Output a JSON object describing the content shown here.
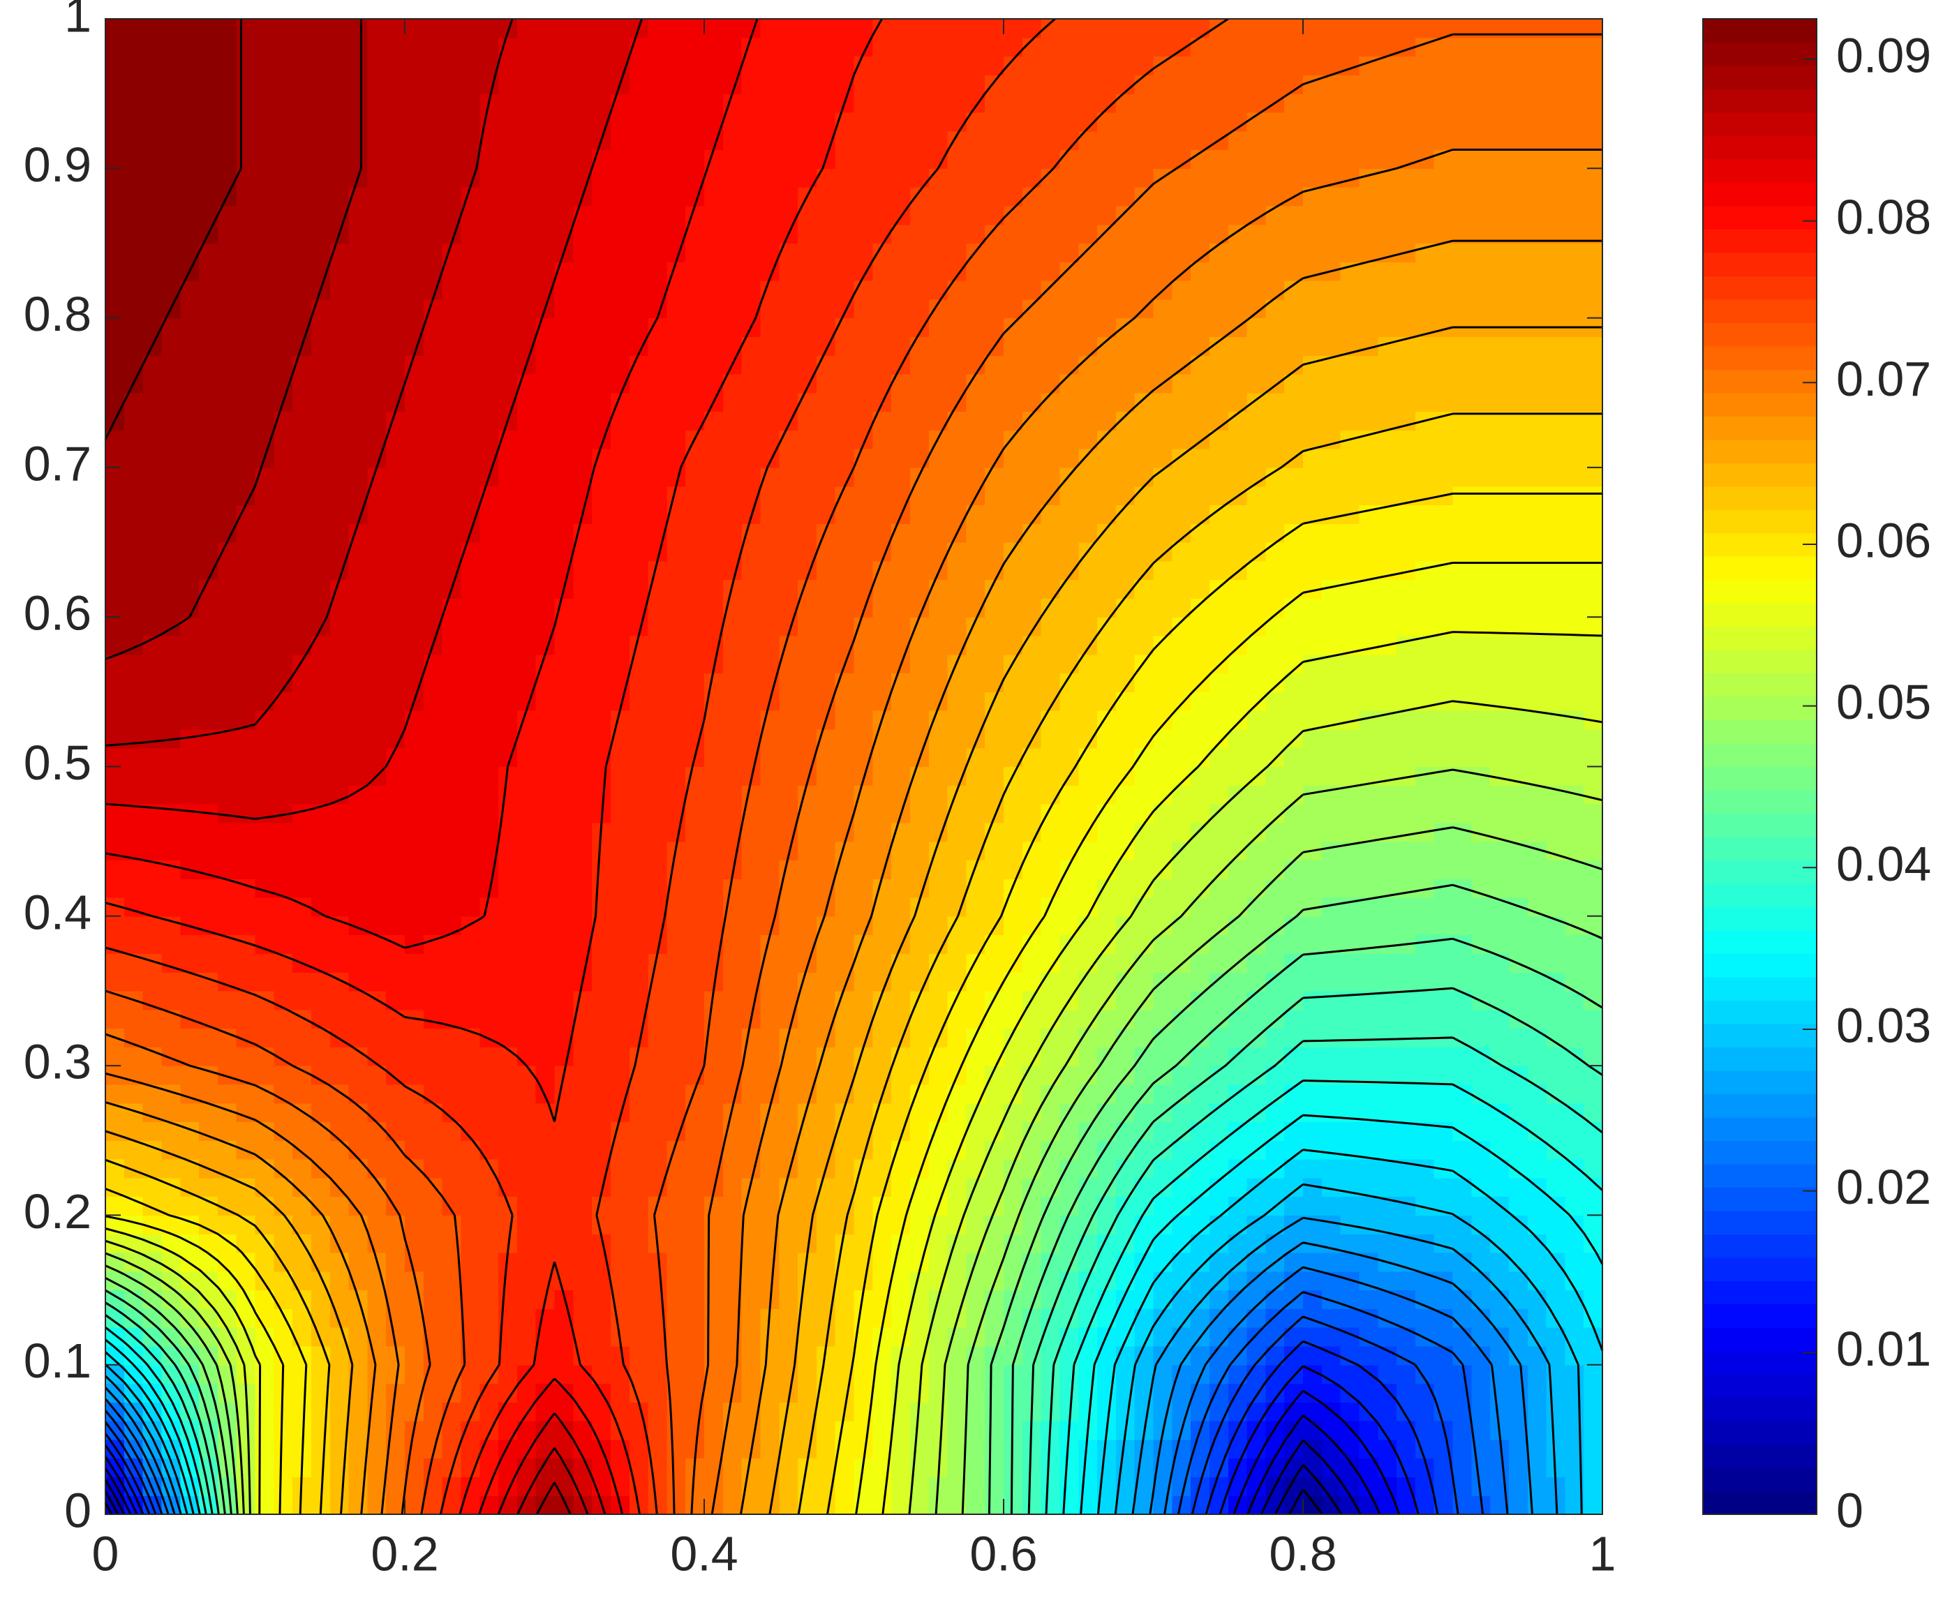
{
  "chart_data": {
    "type": "contour",
    "x": [
      0,
      0.1,
      0.2,
      0.3,
      0.4,
      0.5,
      0.6,
      0.7,
      0.8,
      0.9,
      1
    ],
    "y": [
      0,
      0.1,
      0.2,
      0.3,
      0.4,
      0.5,
      0.6,
      0.7,
      0.8,
      0.9,
      1
    ],
    "z": [
      [
        0,
        0.055,
        0.072,
        0.09,
        0.07,
        0.058,
        0.045,
        0.025,
        0,
        0.018,
        0.032
      ],
      [
        0.03,
        0.055,
        0.07,
        0.08,
        0.072,
        0.06,
        0.045,
        0.028,
        0.014,
        0.02,
        0.032
      ],
      [
        0.058,
        0.063,
        0.072,
        0.078,
        0.072,
        0.062,
        0.05,
        0.036,
        0.028,
        0.03,
        0.036
      ],
      [
        0.07,
        0.073,
        0.077,
        0.079,
        0.074,
        0.065,
        0.055,
        0.045,
        0.038,
        0.038,
        0.042
      ],
      [
        0.078,
        0.08,
        0.082,
        0.08,
        0.075,
        0.068,
        0.06,
        0.052,
        0.046,
        0.045,
        0.047
      ],
      [
        0.085,
        0.085,
        0.083,
        0.08,
        0.076,
        0.07,
        0.063,
        0.057,
        0.052,
        0.051,
        0.052
      ],
      [
        0.089,
        0.087,
        0.084,
        0.081,
        0.077,
        0.072,
        0.066,
        0.061,
        0.057,
        0.056,
        0.056
      ],
      [
        0.09,
        0.088,
        0.085,
        0.082,
        0.078,
        0.074,
        0.069,
        0.065,
        0.062,
        0.061,
        0.061
      ],
      [
        0.091,
        0.089,
        0.086,
        0.083,
        0.08,
        0.076,
        0.072,
        0.069,
        0.066,
        0.065,
        0.065
      ],
      [
        0.092,
        0.09,
        0.087,
        0.084,
        0.081,
        0.078,
        0.075,
        0.072,
        0.07,
        0.069,
        0.069
      ],
      [
        0.092,
        0.09,
        0.087,
        0.085,
        0.082,
        0.079,
        0.077,
        0.075,
        0.073,
        0.072,
        0.072
      ]
    ],
    "levels": 40,
    "colormap": "jet",
    "xlim": [
      0,
      1
    ],
    "ylim": [
      0,
      1
    ],
    "xticks": [
      0,
      0.2,
      0.4,
      0.6,
      0.8,
      1
    ],
    "yticks": [
      0,
      0.1,
      0.2,
      0.3,
      0.4,
      0.5,
      0.6,
      0.7,
      0.8,
      0.9,
      1
    ],
    "clim": [
      0,
      0.0925
    ],
    "cticks": [
      0,
      0.01,
      0.02,
      0.03,
      0.04,
      0.05,
      0.06,
      0.07,
      0.08,
      0.09
    ]
  }
}
